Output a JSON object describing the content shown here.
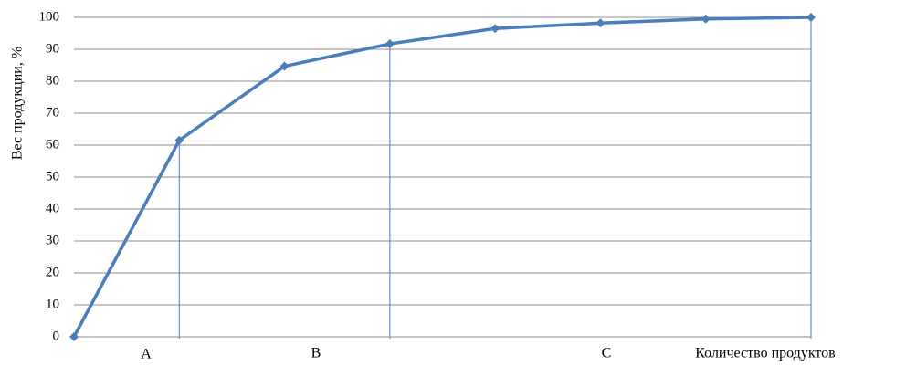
{
  "chart_data": {
    "type": "line",
    "y_label": "Вес продукции,  %",
    "x_label": "Количество продуктов",
    "categories": [
      null,
      null,
      null,
      null,
      null,
      null,
      null,
      null
    ],
    "series": [
      {
        "name": null,
        "color": "#4a7ebb",
        "values": [
          0,
          61.5,
          84.7,
          91.7,
          96.5,
          98.2,
          99.5,
          100
        ]
      }
    ],
    "dividers": [
      1,
      3,
      7
    ],
    "zone_labels": [
      "A",
      "B",
      "C"
    ],
    "ylim": [
      0,
      100
    ],
    "yticks": [
      0,
      10,
      20,
      30,
      40,
      50,
      60,
      70,
      80,
      90,
      100
    ],
    "grid": true
  }
}
